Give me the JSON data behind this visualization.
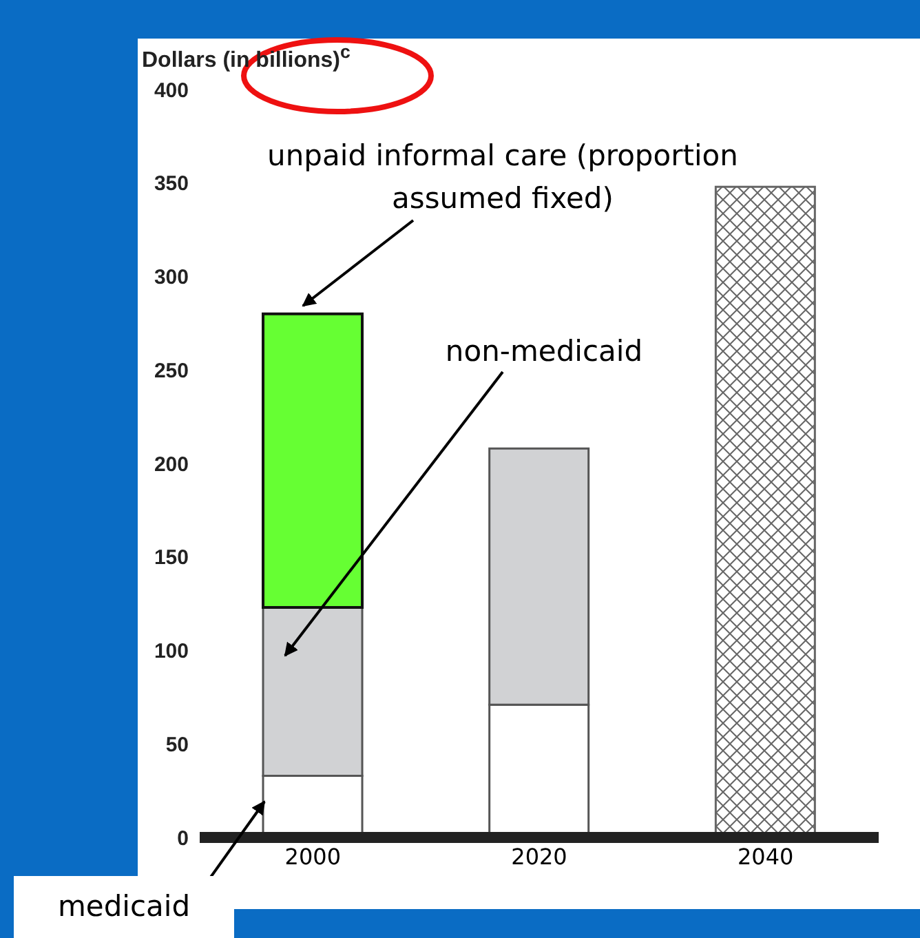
{
  "chart_data": {
    "type": "bar",
    "stacked": true,
    "ylabel": "Dollars (in billions)$^{c}$",
    "categories": [
      "2000",
      "2020",
      "2040"
    ],
    "series": [
      {
        "name": "medicaid",
        "color": "#ffffff",
        "values": [
          33,
          71,
          null
        ]
      },
      {
        "name": "non-medicaid",
        "color": "#d1d2d4",
        "values": [
          90,
          137,
          null
        ]
      },
      {
        "name": "unpaid informal care (proportion assumed fixed)",
        "color": "#66ff33",
        "values": [
          157,
          null,
          null
        ]
      },
      {
        "color": "#666666",
        "values": [
          null,
          null,
          348
        ]
      }
    ],
    "ylim": [
      0,
      400
    ],
    "yticks": [
      0,
      50,
      100,
      150,
      200,
      250,
      300,
      350,
      400
    ],
    "grid": false,
    "legend": false
  }
}
